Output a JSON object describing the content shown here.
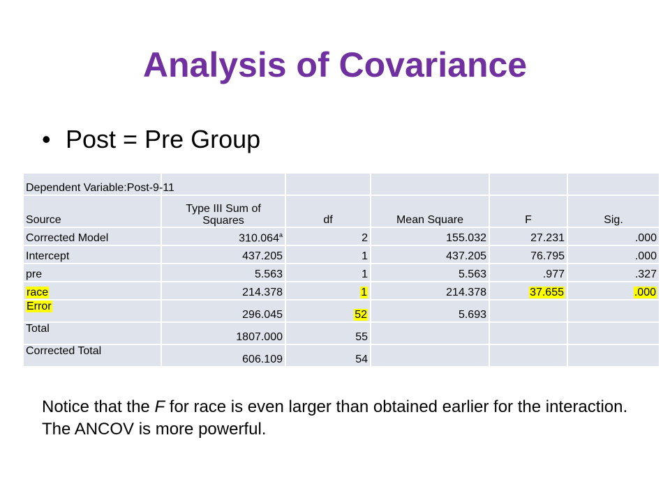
{
  "slide": {
    "title": "Analysis of Covariance",
    "bullet": "Post = Pre Group"
  },
  "table": {
    "caption": "Dependent Variable:Post-9-11",
    "columns": [
      "Source",
      "Type III Sum of Squares",
      "df",
      "Mean Square",
      "F",
      "Sig."
    ],
    "rows": [
      {
        "source": "Corrected Model",
        "ss": "310.064",
        "ss_note": "a",
        "df": "2",
        "ms": "155.032",
        "f": "27.231",
        "sig": ".000"
      },
      {
        "source": "Intercept",
        "ss": "437.205",
        "df": "1",
        "ms": "437.205",
        "f": "76.795",
        "sig": ".000"
      },
      {
        "source": "pre",
        "ss": "5.563",
        "df": "1",
        "ms": "5.563",
        "f": ".977",
        "sig": ".327"
      },
      {
        "source": "race",
        "ss": "214.378",
        "df": "1",
        "ms": "214.378",
        "f": "37.655",
        "sig": ".000"
      },
      {
        "source": "Error",
        "ss": "296.045",
        "df": "52",
        "ms": "5.693",
        "f": "",
        "sig": ""
      },
      {
        "source": "Total",
        "ss": "1807.000",
        "df": "55",
        "ms": "",
        "f": "",
        "sig": ""
      },
      {
        "source": "Corrected Total",
        "ss": "606.109",
        "df": "54",
        "ms": "",
        "f": "",
        "sig": ""
      }
    ],
    "highlight_color": "#ffff00"
  },
  "note": {
    "before": "Notice that the ",
    "italic": "F",
    "after": " for race is even larger than obtained earlier for the interaction.  The ANCOV is more powerful."
  },
  "colors": {
    "title": "#7030a0",
    "table_bg": "#dfe4ec"
  }
}
